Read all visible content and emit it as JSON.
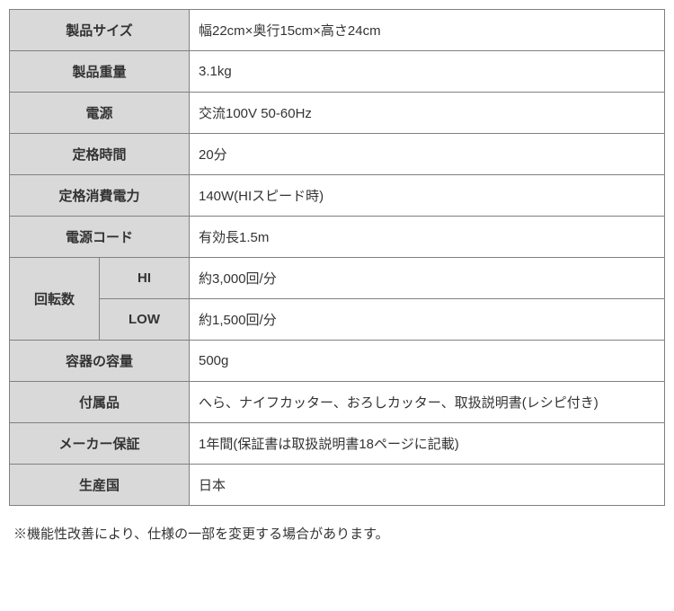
{
  "specs": {
    "product_size": {
      "label": "製品サイズ",
      "value": "幅22cm×奥行15cm×高さ24cm"
    },
    "product_weight": {
      "label": "製品重量",
      "value": "3.1kg"
    },
    "power_source": {
      "label": "電源",
      "value": "交流100V 50-60Hz"
    },
    "rated_time": {
      "label": "定格時間",
      "value": "20分"
    },
    "rated_power": {
      "label": "定格消費電力",
      "value": "140W(HIスピード時)"
    },
    "power_cord": {
      "label": "電源コード",
      "value": "有効長1.5m"
    },
    "rotation": {
      "label": "回転数",
      "hi": {
        "label": "HI",
        "value": "約3,000回/分"
      },
      "low": {
        "label": "LOW",
        "value": "約1,500回/分"
      }
    },
    "container_capacity": {
      "label": "容器の容量",
      "value": "500g"
    },
    "accessories": {
      "label": "付属品",
      "value": "へら、ナイフカッター、おろしカッター、取扱説明書(レシピ付き)"
    },
    "warranty": {
      "label": "メーカー保証",
      "value": "1年間(保証書は取扱説明書18ページに記載)"
    },
    "country": {
      "label": "生産国",
      "value": "日本"
    }
  },
  "footnote": "※機能性改善により、仕様の一部を変更する場合があります。",
  "colors": {
    "header_bg": "#d9d9d9",
    "border": "#808080",
    "text": "#333333",
    "value_bg": "#ffffff"
  }
}
